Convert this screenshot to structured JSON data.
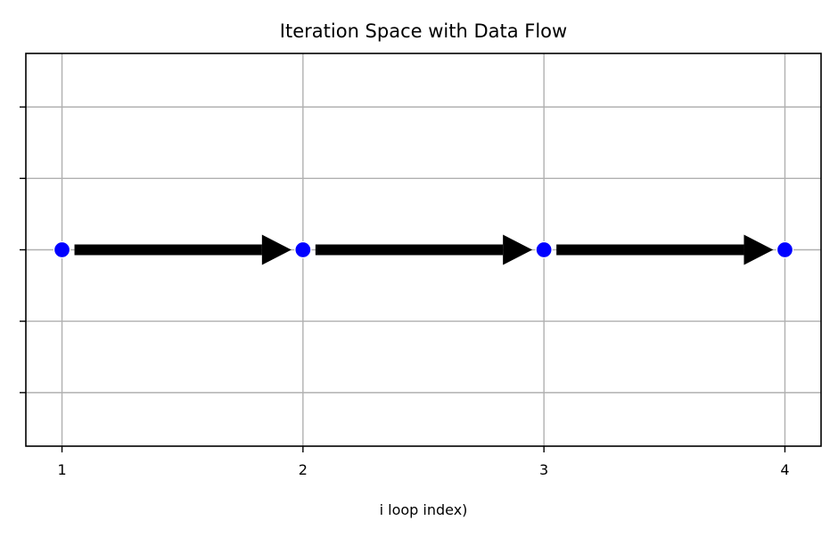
{
  "chart_data": {
    "type": "scatter",
    "title": "Iteration Space with Data Flow",
    "xlabel": "i  loop index)",
    "ylabel": "",
    "xlim": [
      0.85,
      4.15
    ],
    "ylim": [
      -0.055,
      0.055
    ],
    "xticks": [
      1,
      2,
      3,
      4
    ],
    "xtick_labels": [
      "1",
      "2",
      "3",
      "4"
    ],
    "yticks": [
      -0.04,
      -0.02,
      0,
      0.02,
      0.04
    ],
    "ytick_labels": [
      "",
      "",
      "",
      "",
      ""
    ],
    "grid": true,
    "legend": "none",
    "points": [
      {
        "x": 1,
        "y": 0
      },
      {
        "x": 2,
        "y": 0
      },
      {
        "x": 3,
        "y": 0
      },
      {
        "x": 4,
        "y": 0
      }
    ],
    "arrows": [
      {
        "from": 1,
        "to": 2
      },
      {
        "from": 2,
        "to": 3
      },
      {
        "from": 3,
        "to": 4
      }
    ],
    "colors": {
      "points": "#0000ff",
      "arrows": "#000000",
      "grid": "#b0b0b0",
      "axes": "#000000"
    }
  }
}
